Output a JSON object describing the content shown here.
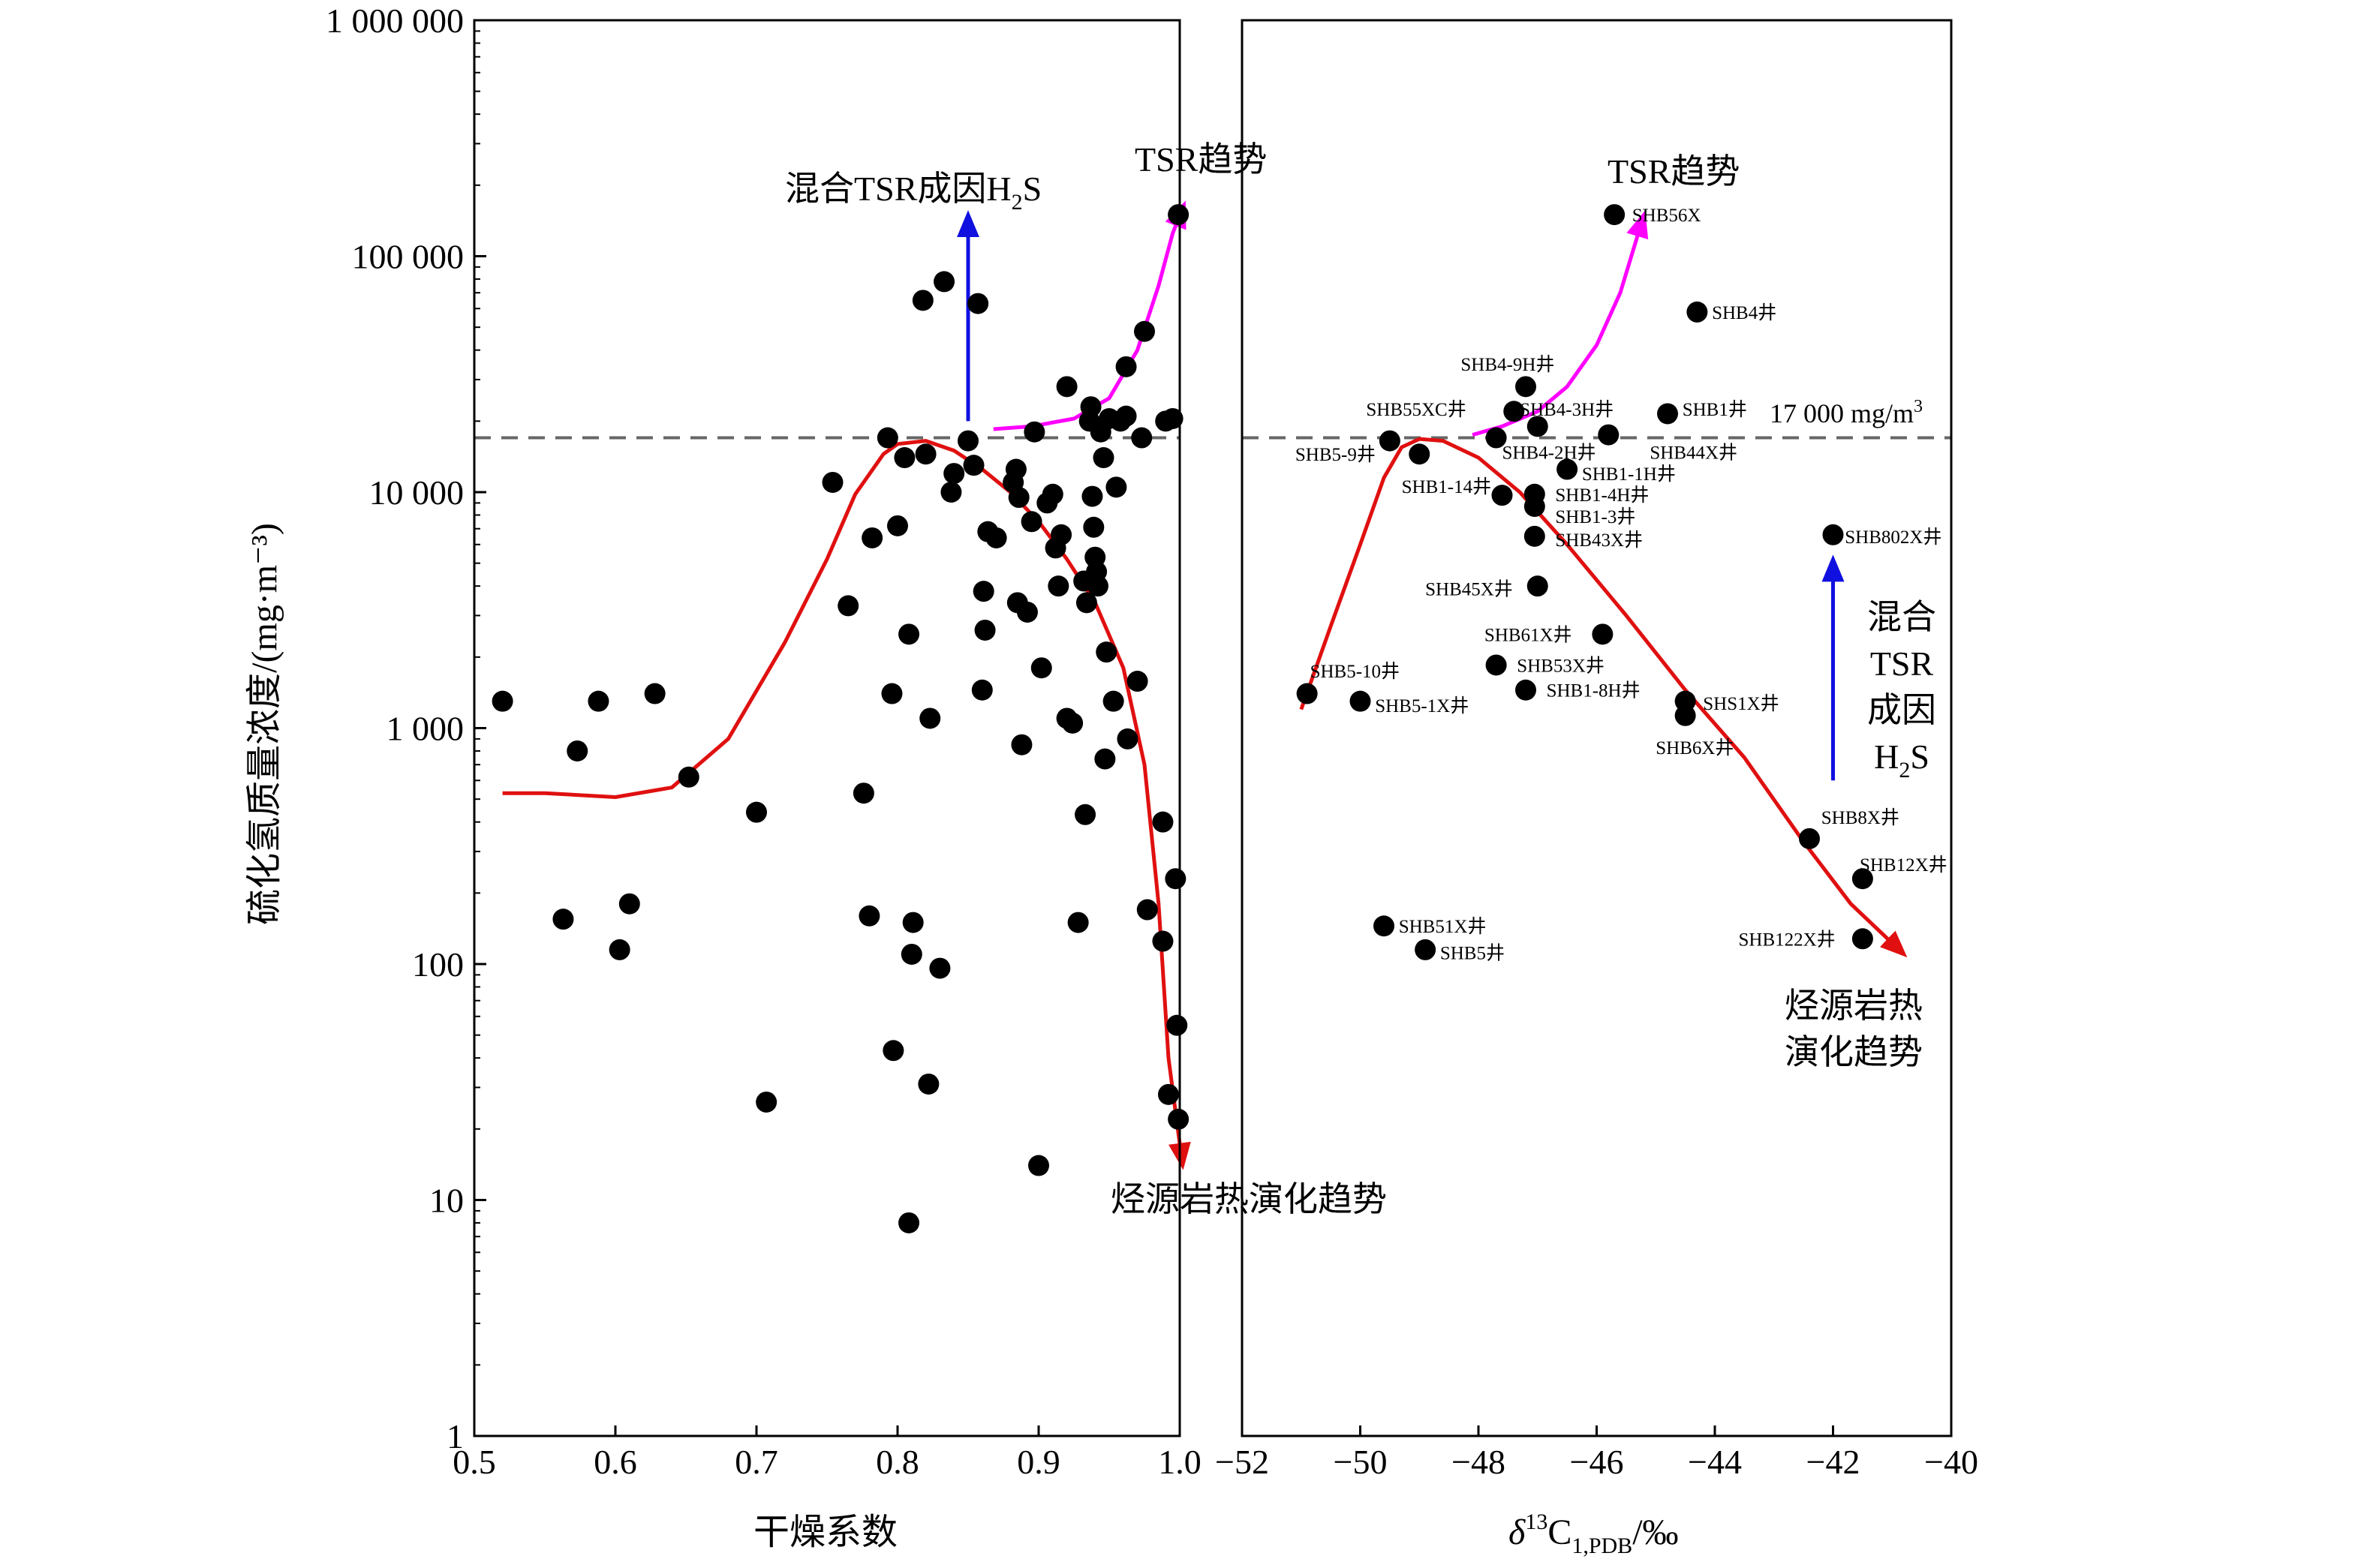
{
  "chart_data": [
    {
      "type": "scatter",
      "xlabel": "干燥系数",
      "ylabel": "硫化氢质量浓度/(mg·m⁻³)",
      "xlim": [
        0.5,
        1.0
      ],
      "ylim": [
        1,
        1000000
      ],
      "yscale": "log",
      "x_ticks": [
        {
          "v": 0.5,
          "t": "0.5"
        },
        {
          "v": 0.6,
          "t": "0.6"
        },
        {
          "v": 0.7,
          "t": "0.7"
        },
        {
          "v": 0.8,
          "t": "0.8"
        },
        {
          "v": 0.9,
          "t": "0.9"
        },
        {
          "v": 1.0,
          "t": "1.0"
        }
      ],
      "y_ticks": [
        {
          "v": 1,
          "t": "1"
        },
        {
          "v": 10,
          "t": "10"
        },
        {
          "v": 100,
          "t": "100"
        },
        {
          "v": 1000,
          "t": "1 000"
        },
        {
          "v": 10000,
          "t": "10 000"
        },
        {
          "v": 100000,
          "t": "100 000"
        },
        {
          "v": 1000000,
          "t": "1 000 000"
        }
      ],
      "threshold": 17000,
      "points": [
        [
          0.52,
          1300
        ],
        [
          0.573,
          800
        ],
        [
          0.588,
          1300
        ],
        [
          0.628,
          1400
        ],
        [
          0.652,
          620
        ],
        [
          0.563,
          155
        ],
        [
          0.603,
          115
        ],
        [
          0.61,
          180
        ],
        [
          0.7,
          440
        ],
        [
          0.707,
          26
        ],
        [
          0.754,
          11000
        ],
        [
          0.765,
          3300
        ],
        [
          0.776,
          530
        ],
        [
          0.78,
          160
        ],
        [
          0.782,
          6400
        ],
        [
          0.793,
          17000
        ],
        [
          0.796,
          1400
        ],
        [
          0.797,
          43
        ],
        [
          0.8,
          7200
        ],
        [
          0.805,
          14000
        ],
        [
          0.808,
          2500
        ],
        [
          0.81,
          110
        ],
        [
          0.811,
          150
        ],
        [
          0.808,
          8
        ],
        [
          0.822,
          31
        ],
        [
          0.82,
          14500
        ],
        [
          0.823,
          1100
        ],
        [
          0.83,
          96
        ],
        [
          0.833,
          78000
        ],
        [
          0.838,
          10000
        ],
        [
          0.84,
          12000
        ],
        [
          0.818,
          65000
        ],
        [
          0.85,
          16500
        ],
        [
          0.854,
          13000
        ],
        [
          0.857,
          63000
        ],
        [
          0.86,
          1450
        ],
        [
          0.861,
          3800
        ],
        [
          0.862,
          2600
        ],
        [
          0.864,
          6800
        ],
        [
          0.87,
          6400
        ],
        [
          0.882,
          11000
        ],
        [
          0.884,
          12500
        ],
        [
          0.885,
          3400
        ],
        [
          0.886,
          9500
        ],
        [
          0.888,
          850
        ],
        [
          0.892,
          3100
        ],
        [
          0.895,
          7500
        ],
        [
          0.897,
          18000
        ],
        [
          0.9,
          14
        ],
        [
          0.902,
          1800
        ],
        [
          0.906,
          9000
        ],
        [
          0.91,
          9800
        ],
        [
          0.912,
          5800
        ],
        [
          0.914,
          4000
        ],
        [
          0.916,
          6600
        ],
        [
          0.92,
          28000
        ],
        [
          0.92,
          1100
        ],
        [
          0.924,
          1050
        ],
        [
          0.928,
          150
        ],
        [
          0.932,
          4200
        ],
        [
          0.933,
          430
        ],
        [
          0.934,
          3400
        ],
        [
          0.936,
          20000
        ],
        [
          0.937,
          23000
        ],
        [
          0.938,
          9600
        ],
        [
          0.939,
          7100
        ],
        [
          0.94,
          5300
        ],
        [
          0.941,
          4600
        ],
        [
          0.942,
          4000
        ],
        [
          0.944,
          18000
        ],
        [
          0.946,
          14000
        ],
        [
          0.947,
          740
        ],
        [
          0.948,
          2100
        ],
        [
          0.95,
          20500
        ],
        [
          0.953,
          1300
        ],
        [
          0.955,
          10500
        ],
        [
          0.958,
          20000
        ],
        [
          0.962,
          34000
        ],
        [
          0.962,
          21000
        ],
        [
          0.963,
          900
        ],
        [
          0.97,
          1580
        ],
        [
          0.973,
          17000
        ],
        [
          0.975,
          48000
        ],
        [
          0.977,
          170
        ],
        [
          0.988,
          400
        ],
        [
          0.988,
          125
        ],
        [
          0.99,
          20000
        ],
        [
          0.992,
          28
        ],
        [
          0.995,
          20500
        ],
        [
          0.997,
          230
        ],
        [
          0.998,
          55
        ],
        [
          0.999,
          22
        ],
        [
          0.999,
          150000
        ]
      ],
      "curves": [
        {
          "name": "烃源岩热演化趋势",
          "color": "#e01010",
          "points": [
            [
              0.52,
              530
            ],
            [
              0.55,
              530
            ],
            [
              0.6,
              510
            ],
            [
              0.64,
              560
            ],
            [
              0.68,
              900
            ],
            [
              0.72,
              2300
            ],
            [
              0.75,
              5200
            ],
            [
              0.77,
              9800
            ],
            [
              0.79,
              14500
            ],
            [
              0.8,
              16000
            ],
            [
              0.82,
              16500
            ],
            [
              0.84,
              15000
            ],
            [
              0.86,
              12500
            ],
            [
              0.88,
              10000
            ],
            [
              0.9,
              7500
            ],
            [
              0.92,
              5200
            ],
            [
              0.94,
              3400
            ],
            [
              0.96,
              1800
            ],
            [
              0.975,
              700
            ],
            [
              0.985,
              180
            ],
            [
              0.992,
              40
            ],
            [
              1.002,
              14
            ]
          ]
        },
        {
          "name": "TSR趋势",
          "color": "#ff00ff",
          "points": [
            [
              0.868,
              18500
            ],
            [
              0.895,
              19000
            ],
            [
              0.925,
              20500
            ],
            [
              0.95,
              25000
            ],
            [
              0.97,
              40000
            ],
            [
              0.985,
              75000
            ],
            [
              0.995,
              125000
            ],
            [
              1.003,
              165000
            ]
          ]
        }
      ],
      "arrows": [
        {
          "name": "混合TSR成因H2S",
          "color": "#1010e0",
          "from": [
            0.85,
            20000
          ],
          "to": [
            0.85,
            150000
          ]
        }
      ],
      "annotations": {
        "mix_label": "混合TSR成因H",
        "mix_label_sub": "2",
        "mix_label_end": "S",
        "tsr_label": "TSR趋势",
        "thermal_label": "烃源岩热演化趋势"
      }
    },
    {
      "type": "scatter",
      "xlabel_delta": "δ",
      "xlabel_sup": "13",
      "xlabel_c": "C",
      "xlabel_sub": "1,PDB",
      "xlabel_unit": "/‰",
      "xlim": [
        -52,
        -40
      ],
      "ylim": [
        1,
        1000000
      ],
      "yscale": "log",
      "x_ticks": [
        {
          "v": -52,
          "t": "−52"
        },
        {
          "v": -50,
          "t": "−50"
        },
        {
          "v": -48,
          "t": "−48"
        },
        {
          "v": -46,
          "t": "−46"
        },
        {
          "v": -44,
          "t": "−44"
        },
        {
          "v": -42,
          "t": "−42"
        },
        {
          "v": -40,
          "t": "−40"
        }
      ],
      "threshold": 17000,
      "threshold_label": "17 000 mg/m",
      "threshold_label_sup": "3",
      "points": [
        {
          "x": -45.7,
          "y": 150000,
          "label": "SHB56X",
          "lx": -45.4,
          "ly": 150000
        },
        {
          "x": -44.3,
          "y": 58000,
          "label": "SHB4井",
          "lx": -44.05,
          "ly": 58000
        },
        {
          "x": -47.2,
          "y": 28000,
          "label": "SHB4-9H井",
          "lx": -48.3,
          "ly": 35000
        },
        {
          "x": -47.4,
          "y": 22000,
          "label": "SHB55XC井",
          "lx": -49.9,
          "ly": 22500
        },
        {
          "x": -47.0,
          "y": 19000,
          "label": "SHB4-3H井",
          "lx": -47.3,
          "ly": 22500
        },
        {
          "x": -44.8,
          "y": 21500,
          "label": "SHB1井",
          "lx": -44.55,
          "ly": 22500
        },
        {
          "x": -49.5,
          "y": 16500,
          "label": "SHB5-9井",
          "lx": -51.1,
          "ly": 14500
        },
        {
          "x": -49.0,
          "y": 14500,
          "label": null
        },
        {
          "x": -47.7,
          "y": 17000,
          "label": "SHB4-2H井",
          "lx": -47.6,
          "ly": 14800
        },
        {
          "x": -45.8,
          "y": 17500,
          "label": "SHB44X井",
          "lx": -45.1,
          "ly": 14800
        },
        {
          "x": -46.5,
          "y": 12500,
          "label": "SHB1-1H井",
          "lx": -46.25,
          "ly": 12000
        },
        {
          "x": -47.6,
          "y": 9700,
          "label": "SHB1-14井",
          "lx": -49.3,
          "ly": 10600
        },
        {
          "x": -47.05,
          "y": 9800,
          "label": "SHB1-4H井",
          "lx": -46.7,
          "ly": 9800
        },
        {
          "x": -47.05,
          "y": 8700,
          "label": "SHB1-3井",
          "lx": -46.7,
          "ly": 7900
        },
        {
          "x": -47.05,
          "y": 6500,
          "label": "SHB43X井",
          "lx": -46.7,
          "ly": 6300
        },
        {
          "x": -47.0,
          "y": 4000,
          "label": "SHB45X井",
          "lx": -48.9,
          "ly": 3900
        },
        {
          "x": -45.9,
          "y": 2500,
          "label": "SHB61X井",
          "lx": -47.9,
          "ly": 2500
        },
        {
          "x": -47.7,
          "y": 1850,
          "label": "SHB53X井",
          "lx": -47.35,
          "ly": 1850
        },
        {
          "x": -47.2,
          "y": 1450,
          "label": "SHB1-8H井",
          "lx": -46.85,
          "ly": 1450
        },
        {
          "x": -44.5,
          "y": 1300,
          "label": "SHS1X井",
          "lx": -44.2,
          "ly": 1280
        },
        {
          "x": -44.5,
          "y": 1130,
          "label": "SHB6X井",
          "lx": -45.0,
          "ly": 830
        },
        {
          "x": -50.9,
          "y": 1400,
          "label": "SHB5-10井",
          "lx": -50.85,
          "ly": 1750
        },
        {
          "x": -50.0,
          "y": 1300,
          "label": "SHB5-1X井",
          "lx": -49.75,
          "ly": 1250
        },
        {
          "x": -42.0,
          "y": 6600,
          "label": "SHB802X井",
          "lx": -41.8,
          "ly": 6500
        },
        {
          "x": -42.4,
          "y": 340,
          "label": "SHB8X井",
          "lx": -42.2,
          "ly": 420
        },
        {
          "x": -41.5,
          "y": 230,
          "label": "SHB12X井",
          "lx": -41.55,
          "ly": 265
        },
        {
          "x": -41.5,
          "y": 128,
          "label": "SHB122X井",
          "lx": -43.6,
          "ly": 128
        },
        {
          "x": -49.6,
          "y": 145,
          "label": "SHB51X井",
          "lx": -49.35,
          "ly": 145
        },
        {
          "x": -48.9,
          "y": 115,
          "label": "SHB5井",
          "lx": -48.65,
          "ly": 112
        }
      ],
      "curves": [
        {
          "name": "烃源岩热演化趋势",
          "color": "#e01010",
          "points": [
            [
              -51.0,
              1200
            ],
            [
              -50.5,
              2700
            ],
            [
              -50.0,
              6000
            ],
            [
              -49.6,
              11500
            ],
            [
              -49.3,
              15500
            ],
            [
              -49.0,
              16800
            ],
            [
              -48.6,
              16500
            ],
            [
              -48.0,
              14000
            ],
            [
              -47.3,
              10000
            ],
            [
              -46.5,
              6000
            ],
            [
              -45.5,
              3000
            ],
            [
              -44.5,
              1450
            ],
            [
              -43.5,
              750
            ],
            [
              -42.5,
              330
            ],
            [
              -41.7,
              180
            ],
            [
              -40.8,
              110
            ]
          ]
        },
        {
          "name": "TSR趋势",
          "color": "#ff00ff",
          "points": [
            [
              -48.1,
              17500
            ],
            [
              -47.6,
              19000
            ],
            [
              -47.0,
              22000
            ],
            [
              -46.5,
              28000
            ],
            [
              -46.0,
              42000
            ],
            [
              -45.6,
              70000
            ],
            [
              -45.2,
              150000
            ]
          ]
        }
      ],
      "arrows": [
        {
          "name": "混合TSR成因H2S",
          "color": "#1010e0",
          "from": [
            -42.0,
            600
          ],
          "to": [
            -42.0,
            5200
          ]
        }
      ],
      "annotations": {
        "tsr_label": "TSR趋势",
        "mix_lines": [
          "混合",
          "TSR",
          "成因"
        ],
        "mix_h": "H",
        "mix_h_sub": "2",
        "mix_h_end": "S",
        "thermal_lines": [
          "烃源岩热",
          "演化趋势"
        ]
      }
    }
  ]
}
